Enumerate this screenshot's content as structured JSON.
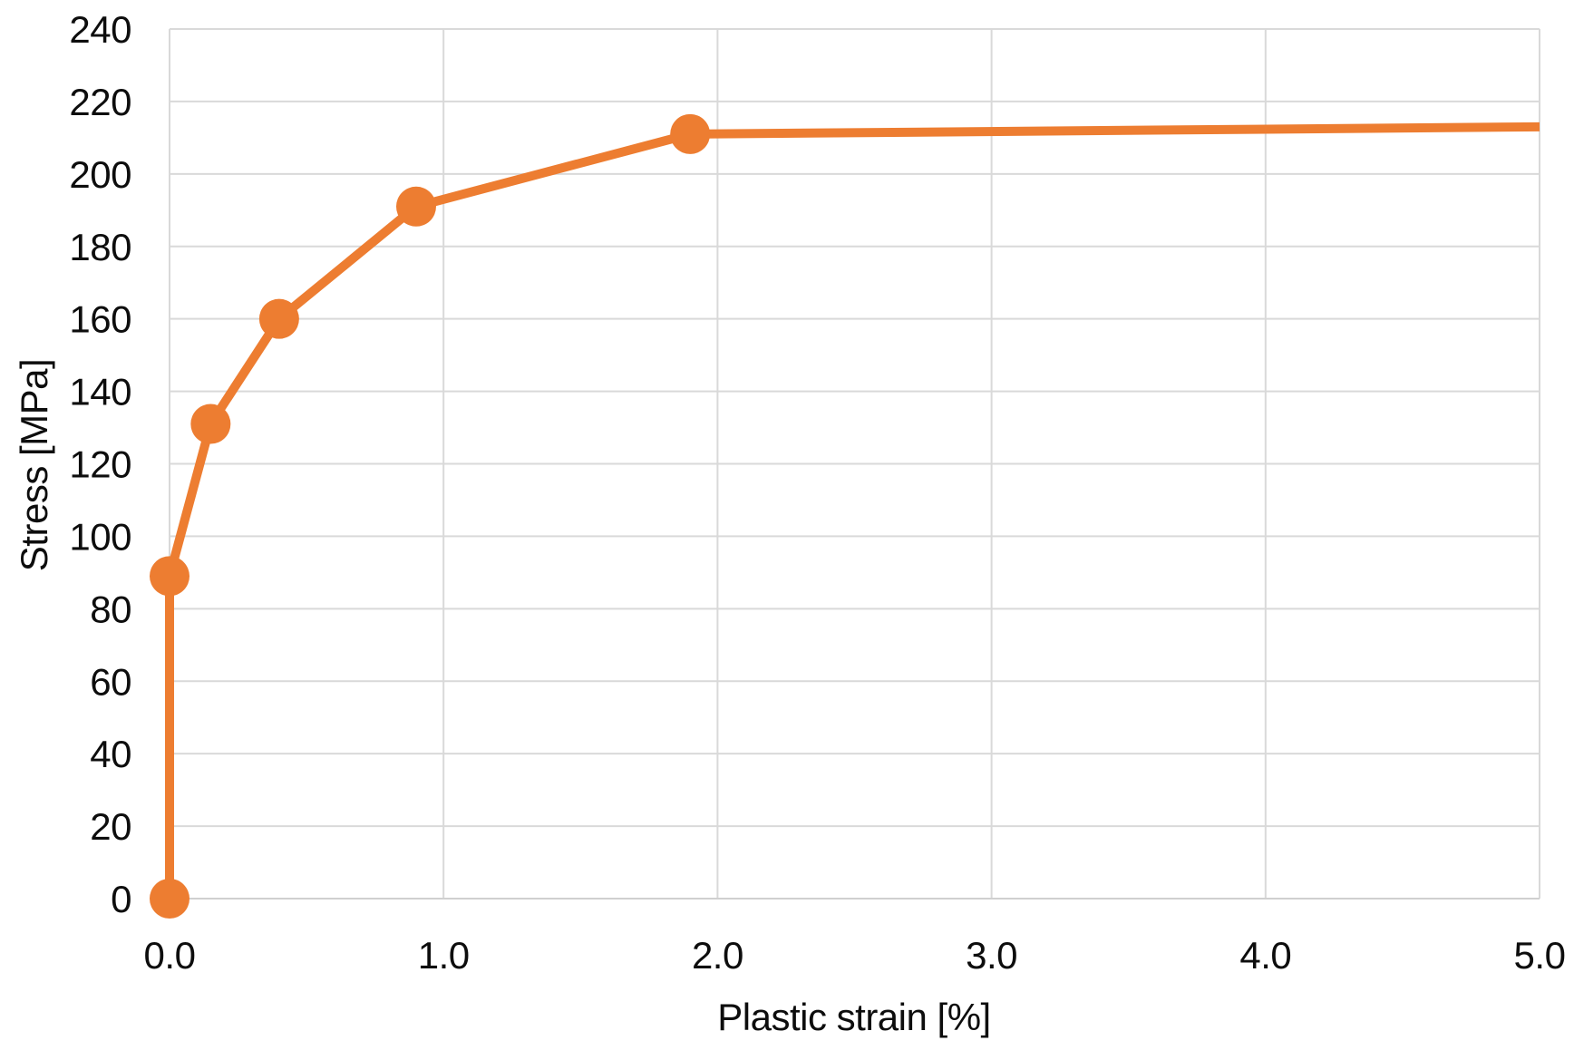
{
  "chart_data": {
    "type": "line",
    "title": "",
    "xlabel": "Plastic strain [%]",
    "ylabel": "Stress [MPa]",
    "xlim": [
      0.0,
      5.0
    ],
    "ylim": [
      0,
      240
    ],
    "grid": true,
    "legend": false,
    "x_ticks": [
      {
        "value": 0.0,
        "label": "0.0"
      },
      {
        "value": 1.0,
        "label": "1.0"
      },
      {
        "value": 2.0,
        "label": "2.0"
      },
      {
        "value": 3.0,
        "label": "3.0"
      },
      {
        "value": 4.0,
        "label": "4.0"
      },
      {
        "value": 5.0,
        "label": "5.0"
      }
    ],
    "y_ticks": [
      {
        "value": 0,
        "label": "0"
      },
      {
        "value": 20,
        "label": "20"
      },
      {
        "value": 40,
        "label": "40"
      },
      {
        "value": 60,
        "label": "60"
      },
      {
        "value": 80,
        "label": "80"
      },
      {
        "value": 100,
        "label": "100"
      },
      {
        "value": 120,
        "label": "120"
      },
      {
        "value": 140,
        "label": "140"
      },
      {
        "value": 160,
        "label": "160"
      },
      {
        "value": 180,
        "label": "180"
      },
      {
        "value": 200,
        "label": "200"
      },
      {
        "value": 220,
        "label": "220"
      },
      {
        "value": 240,
        "label": "240"
      }
    ],
    "series": [
      {
        "name": "",
        "points": [
          {
            "x": 0.0,
            "y": 0,
            "marker": true
          },
          {
            "x": 0.0,
            "y": 89,
            "marker": true
          },
          {
            "x": 0.15,
            "y": 131,
            "marker": true
          },
          {
            "x": 0.4,
            "y": 160,
            "marker": true
          },
          {
            "x": 0.9,
            "y": 191,
            "marker": true
          },
          {
            "x": 1.9,
            "y": 211,
            "marker": true
          },
          {
            "x": 5.0,
            "y": 213,
            "marker": false
          }
        ]
      }
    ],
    "style": {
      "line_color": "#ED7D31",
      "marker_color": "#ED7D31",
      "gridline_color": "#D9D9D9",
      "axis_line_color": "#D0D0D0",
      "text_color": "#0D0D0D",
      "background_color": "#FFFFFF"
    }
  }
}
